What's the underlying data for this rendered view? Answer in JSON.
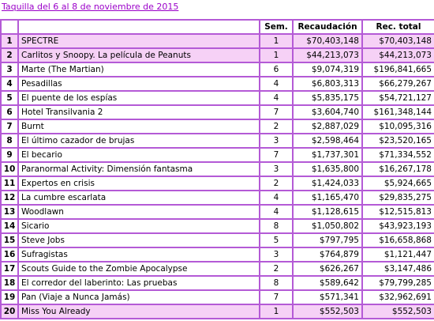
{
  "caption": "Taquilla del 6 al 8 de noviembre de 2015",
  "accent_color": "#b45ad6",
  "highlight_color": "#f6d1f6",
  "headers": {
    "rank": "",
    "title": "",
    "weeks": "Sem.",
    "gross": "Recaudación",
    "total": "Rec. total"
  },
  "rows": [
    {
      "rank": "1",
      "title": "SPECTRE",
      "weeks": "1",
      "gross": "$70,403,148",
      "total": "$70,403,148",
      "highlight": true
    },
    {
      "rank": "2",
      "title": "Carlitos y Snoopy. La película de Peanuts",
      "weeks": "1",
      "gross": "$44,213,073",
      "total": "$44,213,073",
      "highlight": true
    },
    {
      "rank": "3",
      "title": "Marte (The Martian)",
      "weeks": "6",
      "gross": "$9,074,319",
      "total": "$196,841,665",
      "highlight": false
    },
    {
      "rank": "4",
      "title": "Pesadillas",
      "weeks": "4",
      "gross": "$6,803,313",
      "total": "$66,279,267",
      "highlight": false
    },
    {
      "rank": "5",
      "title": "El puente de los espías",
      "weeks": "4",
      "gross": "$5,835,175",
      "total": "$54,721,127",
      "highlight": false
    },
    {
      "rank": "6",
      "title": "Hotel Transilvania 2",
      "weeks": "7",
      "gross": "$3,604,740",
      "total": "$161,348,144",
      "highlight": false
    },
    {
      "rank": "7",
      "title": "Burnt",
      "weeks": "2",
      "gross": "$2,887,029",
      "total": "$10,095,316",
      "highlight": false
    },
    {
      "rank": "8",
      "title": "El último cazador de brujas",
      "weeks": "3",
      "gross": "$2,598,464",
      "total": "$23,520,165",
      "highlight": false
    },
    {
      "rank": "9",
      "title": "El becario",
      "weeks": "7",
      "gross": "$1,737,301",
      "total": "$71,334,552",
      "highlight": false
    },
    {
      "rank": "10",
      "title": "Paranormal Activity: Dimensión fantasma",
      "weeks": "3",
      "gross": "$1,635,800",
      "total": "$16,267,178",
      "highlight": false
    },
    {
      "rank": "11",
      "title": "Expertos en crisis",
      "weeks": "2",
      "gross": "$1,424,033",
      "total": "$5,924,665",
      "highlight": false
    },
    {
      "rank": "12",
      "title": "La cumbre escarlata",
      "weeks": "4",
      "gross": "$1,165,470",
      "total": "$29,835,275",
      "highlight": false
    },
    {
      "rank": "13",
      "title": "Woodlawn",
      "weeks": "4",
      "gross": "$1,128,615",
      "total": "$12,515,813",
      "highlight": false
    },
    {
      "rank": "14",
      "title": "Sicario",
      "weeks": "8",
      "gross": "$1,050,802",
      "total": "$43,923,193",
      "highlight": false
    },
    {
      "rank": "15",
      "title": "Steve Jobs",
      "weeks": "5",
      "gross": "$797,795",
      "total": "$16,658,868",
      "highlight": false
    },
    {
      "rank": "16",
      "title": "Sufragistas",
      "weeks": "3",
      "gross": "$764,879",
      "total": "$1,121,447",
      "highlight": false
    },
    {
      "rank": "17",
      "title": "Scouts Guide to the Zombie Apocalypse",
      "weeks": "2",
      "gross": "$626,267",
      "total": "$3,147,486",
      "highlight": false
    },
    {
      "rank": "18",
      "title": "El corredor del laberinto: Las pruebas",
      "weeks": "8",
      "gross": "$589,642",
      "total": "$79,799,285",
      "highlight": false
    },
    {
      "rank": "19",
      "title": "Pan (Viaje a Nunca Jamás)",
      "weeks": "7",
      "gross": "$571,341",
      "total": "$32,962,691",
      "highlight": false
    },
    {
      "rank": "20",
      "title": "Miss You Already",
      "weeks": "1",
      "gross": "$552,503",
      "total": "$552,503",
      "highlight": true
    }
  ]
}
